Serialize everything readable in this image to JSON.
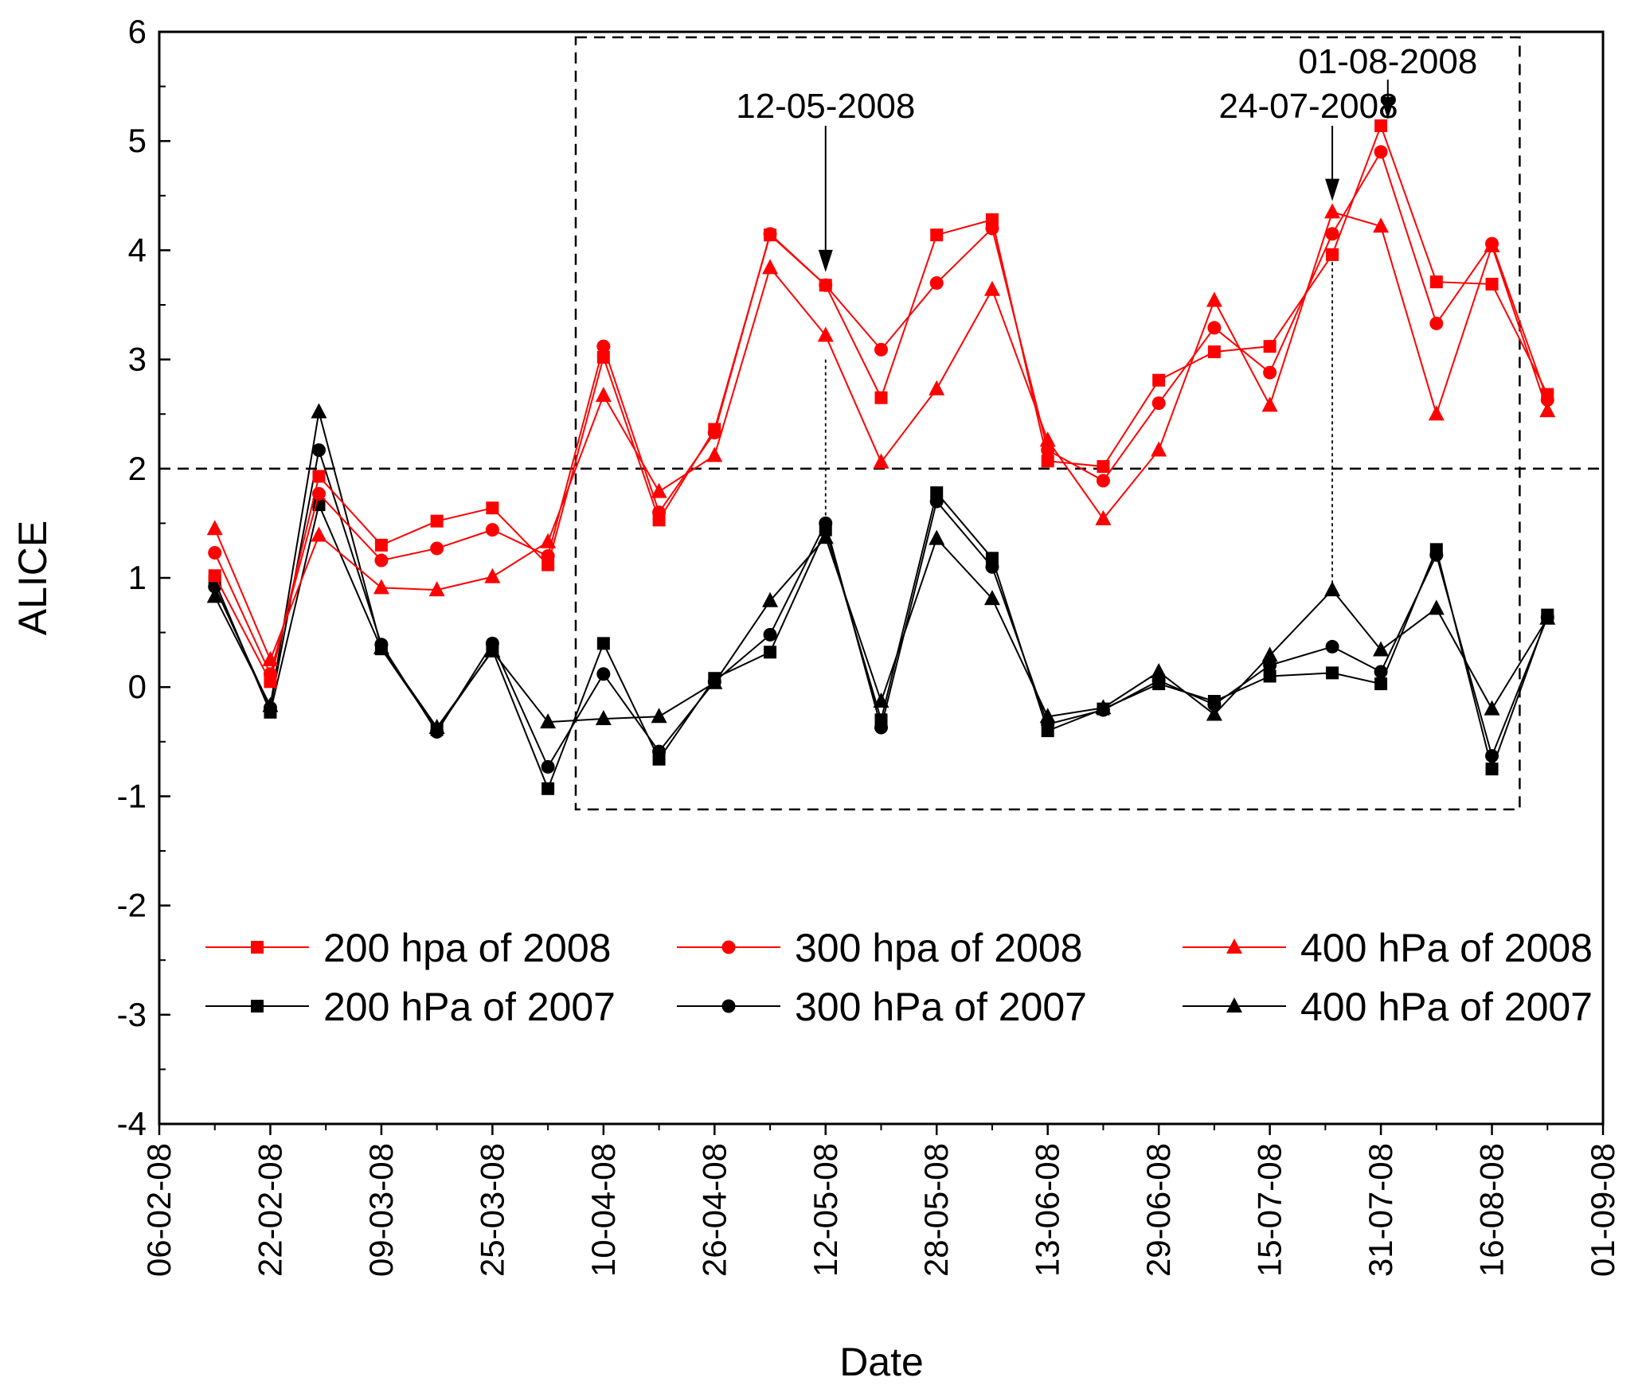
{
  "chart_data": {
    "type": "line",
    "title": "",
    "xlabel": "Date",
    "ylabel": "ALICE",
    "xlim": [
      "06-02-08",
      "01-09-08"
    ],
    "ylim": [
      -4,
      6
    ],
    "x_tick_labels": [
      "06-02-08",
      "22-02-08",
      "09-03-08",
      "25-03-08",
      "10-04-08",
      "26-04-08",
      "12-05-08",
      "28-05-08",
      "13-06-08",
      "29-06-08",
      "15-07-08",
      "31-07-08",
      "16-08-08",
      "01-09-08"
    ],
    "y_ticks": [
      -4,
      -3,
      -2,
      -1,
      0,
      1,
      2,
      3,
      4,
      5,
      6
    ],
    "x": [
      "14-02-08",
      "22-02-08",
      "29-02-08",
      "09-03-08",
      "17-03-08",
      "25-03-08",
      "02-04-08",
      "10-04-08",
      "18-04-08",
      "26-04-08",
      "04-05-08",
      "12-05-08",
      "20-05-08",
      "28-05-08",
      "05-06-08",
      "13-06-08",
      "21-06-08",
      "29-06-08",
      "07-07-08",
      "15-07-08",
      "24-07-08",
      "31-07-08",
      "08-08-08",
      "16-08-08",
      "24-08-08"
    ],
    "series": [
      {
        "name": "200 hpa of 2008",
        "color": "#ff0000",
        "marker": "square",
        "values": [
          1.02,
          0.05,
          1.93,
          1.3,
          1.52,
          1.64,
          1.12,
          3.02,
          1.53,
          2.36,
          4.14,
          3.68,
          2.65,
          4.14,
          4.28,
          2.07,
          2.02,
          2.81,
          3.07,
          3.12,
          3.96,
          5.14,
          3.71,
          3.69,
          2.68
        ]
      },
      {
        "name": "300 hpa of 2008",
        "color": "#ff0000",
        "marker": "circle",
        "values": [
          1.23,
          0.12,
          1.77,
          1.16,
          1.27,
          1.44,
          1.2,
          3.12,
          1.6,
          2.33,
          4.15,
          3.68,
          3.09,
          3.7,
          4.2,
          2.17,
          1.89,
          2.6,
          3.29,
          2.88,
          4.15,
          4.9,
          3.33,
          4.06,
          2.63
        ]
      },
      {
        "name": "400 hPa of 2008",
        "color": "#ff0000",
        "marker": "triangle",
        "values": [
          1.45,
          0.25,
          1.39,
          0.91,
          0.89,
          1.01,
          1.33,
          2.67,
          1.79,
          2.12,
          3.84,
          3.22,
          2.06,
          2.73,
          3.64,
          2.26,
          1.54,
          2.17,
          3.54,
          2.58,
          4.35,
          4.22,
          2.5,
          4.04,
          2.53
        ]
      },
      {
        "name": "200 hPa of 2007",
        "color": "#000000",
        "marker": "square",
        "values": [
          0.97,
          -0.23,
          1.67,
          0.35,
          -0.39,
          0.34,
          -0.93,
          0.4,
          -0.66,
          0.08,
          0.32,
          1.44,
          -0.3,
          1.78,
          1.18,
          -0.4,
          -0.2,
          0.03,
          -0.13,
          0.1,
          0.13,
          0.03,
          1.26,
          -0.75,
          0.66
        ]
      },
      {
        "name": "300 hPa of 2007",
        "color": "#000000",
        "marker": "circle",
        "values": [
          0.92,
          -0.19,
          2.17,
          0.39,
          -0.41,
          0.4,
          -0.73,
          0.12,
          -0.59,
          0.05,
          0.48,
          1.5,
          -0.37,
          1.7,
          1.1,
          -0.34,
          -0.21,
          0.06,
          -0.16,
          0.2,
          0.37,
          0.14,
          1.21,
          -0.63,
          0.64
        ]
      },
      {
        "name": "400 hPa of 2007",
        "color": "#000000",
        "marker": "triangle",
        "values": [
          0.83,
          -0.17,
          2.52,
          0.36,
          -0.37,
          0.33,
          -0.32,
          -0.29,
          -0.27,
          0.04,
          0.79,
          1.37,
          -0.13,
          1.36,
          0.81,
          -0.27,
          -0.19,
          0.14,
          -0.25,
          0.29,
          0.89,
          0.34,
          0.72,
          -0.2,
          0.63
        ]
      }
    ],
    "reference_line": {
      "y": 2,
      "style": "dashed"
    },
    "highlight_box": {
      "x_start": "06-04-08",
      "x_end": "20-08-08",
      "y_min": -1.12,
      "y_max": 5.95,
      "style": "dashed"
    },
    "annotations": [
      {
        "text": "12-05-2008",
        "x": "12-05-08",
        "arrow_to_y": 3.8
      },
      {
        "text": "24-07-2008",
        "x": "24-07-08",
        "arrow_to_y": 4.45
      },
      {
        "text": "01-08-2008",
        "x": "01-08-08",
        "arrow_to_y": 5.2
      }
    ],
    "legend": {
      "placement": "bottom",
      "columns": 3
    }
  }
}
